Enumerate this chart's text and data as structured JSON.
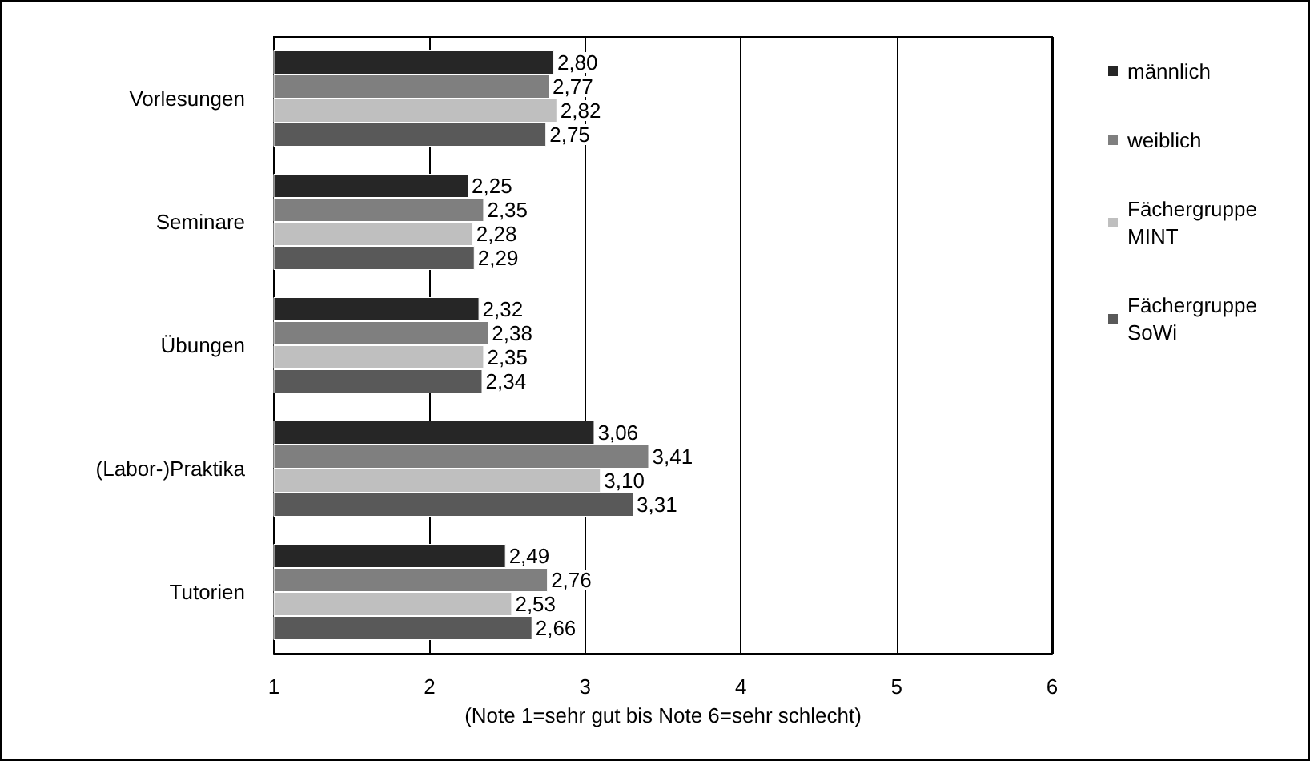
{
  "chart_data": {
    "type": "bar",
    "orientation": "horizontal",
    "xlabel": "(Note 1=sehr gut bis Note 6=sehr schlecht)",
    "categories": [
      "Vorlesungen",
      "Seminare",
      "Übungen",
      "(Labor-)Praktika",
      "Tutorien"
    ],
    "series": [
      {
        "name": "männlich",
        "color": "#262626",
        "values": [
          2.8,
          2.25,
          2.32,
          3.06,
          2.49
        ],
        "value_labels": [
          "2,80",
          "2,25",
          "2,32",
          "3,06",
          "2,49"
        ]
      },
      {
        "name": "weiblich",
        "color": "#7f7f7f",
        "values": [
          2.77,
          2.35,
          2.38,
          3.41,
          2.76
        ],
        "value_labels": [
          "2,77",
          "2,35",
          "2,38",
          "3,41",
          "2,76"
        ]
      },
      {
        "name": "Fächergruppe MINT",
        "color": "#bfbfbf",
        "values": [
          2.82,
          2.28,
          2.35,
          3.1,
          2.53
        ],
        "value_labels": [
          "2,82",
          "2,28",
          "2,35",
          "3,10",
          "2,53"
        ]
      },
      {
        "name": "Fächergruppe SoWi",
        "color": "#595959",
        "values": [
          2.75,
          2.29,
          2.34,
          3.31,
          2.66
        ],
        "value_labels": [
          "2,75",
          "2,29",
          "2,34",
          "3,31",
          "2,66"
        ]
      }
    ],
    "xlim": [
      1,
      6
    ],
    "xticks": [
      1,
      2,
      3,
      4,
      5,
      6
    ],
    "grid": "x",
    "legend": "right"
  }
}
